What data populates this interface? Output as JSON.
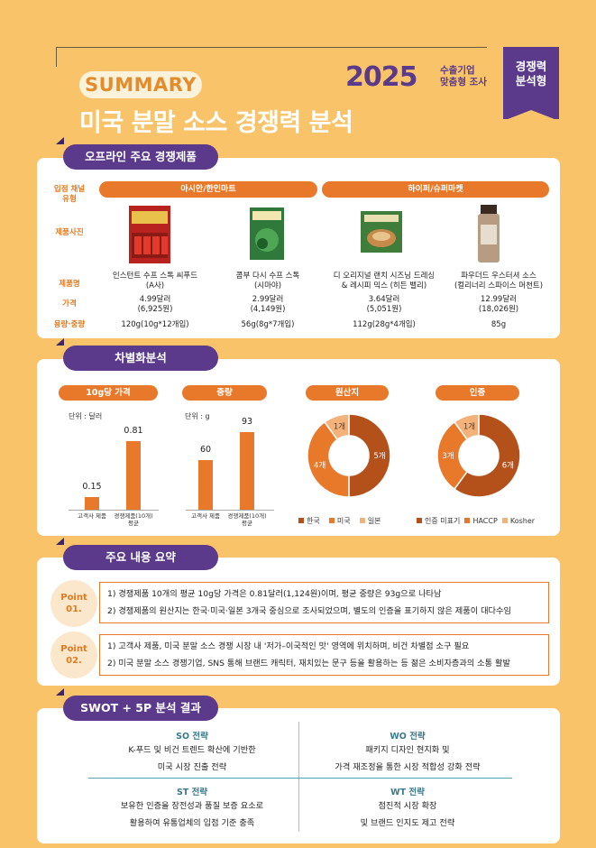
{
  "header": {
    "summary_label": "SUMMARY",
    "title": "미국 분말 소스 경쟁력 분석",
    "year": "2025",
    "year_sub_line1": "수출기업",
    "year_sub_line2": "맞춤형 조사",
    "badge_line1": "경쟁력",
    "badge_line2": "분석형"
  },
  "colors": {
    "purple": "#5B3A8C",
    "orange": "#E8782A",
    "background": "#F9C469",
    "brown": "#B4501A",
    "light_orange": "#F2B27A"
  },
  "offline": {
    "tab": "오프라인 주요 경쟁제품",
    "row_labels": {
      "channel": "입점 채널\n유형",
      "photo": "제품사진",
      "name": "제품명",
      "price": "가격",
      "weight": "용량·중량"
    },
    "channels": [
      "아시안/한인마트",
      "하이퍼/슈퍼마켓"
    ],
    "products": [
      {
        "name1": "인스턴트 수프 스톡 씨푸드",
        "name2": "(A사)",
        "price1": "4.99달러",
        "price2": "(6,925원)",
        "weight": "120g(10g*12개입)",
        "image": "red-seafood-stock-pack"
      },
      {
        "name1": "콤부 다시 수프 스톡",
        "name2": "(시마야)",
        "price1": "2.99달러",
        "price2": "(4,149원)",
        "weight": "56g(8g*7개입)",
        "image": "green-kombu-dashi-pack"
      },
      {
        "name1": "디 오리지널 랜치 시즈닝 드레싱",
        "name2": "& 레시피 믹스 (히든 밸리)",
        "price1": "3.64달러",
        "price2": "(5,051원)",
        "weight": "112g(28g*4개입)",
        "image": "green-ranch-mix-pouch"
      },
      {
        "name1": "파우더드 우스터셔 소스",
        "name2": "(컬리너리 스파이스 머천트)",
        "price1": "12.99달러",
        "price2": "(18,026원)",
        "weight": "85g",
        "image": "spice-jar"
      }
    ]
  },
  "diff": {
    "tab": "차별화분석",
    "price_head": "10g당 가격",
    "price_unit": "단위 : 달러",
    "weight_head": "중량",
    "weight_unit": "단위 : g",
    "origin_head": "원산지",
    "cert_head": "인증",
    "origin_legend": [
      "한국",
      "미국",
      "일본"
    ],
    "cert_legend": [
      "인증 미표기",
      "HACCP",
      "Kosher"
    ]
  },
  "chart_data": [
    {
      "type": "bar",
      "title": "10g당 가격",
      "unit": "단위 : 달러",
      "categories": [
        "고객사 제품",
        "경쟁제품(10개) 평균"
      ],
      "values": [
        0.15,
        0.81
      ]
    },
    {
      "type": "bar",
      "title": "중량",
      "unit": "단위 : g",
      "categories": [
        "고객사 제품",
        "경쟁제품(10개) 평균"
      ],
      "values": [
        60,
        93
      ]
    },
    {
      "type": "pie",
      "title": "원산지",
      "labels": [
        "한국",
        "미국",
        "일본"
      ],
      "values": [
        5,
        4,
        1
      ],
      "value_labels": [
        "5개",
        "4개",
        "1개"
      ]
    },
    {
      "type": "pie",
      "title": "인증",
      "labels": [
        "인증 미표기",
        "HACCP",
        "Kosher"
      ],
      "values": [
        6,
        3,
        1
      ],
      "value_labels": [
        "6개",
        "3개",
        "1개"
      ]
    }
  ],
  "summary": {
    "tab": "주요 내용 요약",
    "points": [
      {
        "label1": "Point",
        "label2": "01.",
        "lines": [
          "1) 경쟁제품 10개의 평균 10g당 가격은 0.81달러(1,124원)이며, 평균 중량은 93g으로 나타남",
          "2) 경쟁제품의 원산지는 한국·미국·일본 3개국 중심으로 조사되었으며, 별도의 인증을 표기하지 않은 제품이 대다수임"
        ]
      },
      {
        "label1": "Point",
        "label2": "02.",
        "lines": [
          "1) 고객사 제품, 미국 분말 소스 경쟁 시장 내 '저가–이국적인 맛' 영역에 위치하며, 비건 차별점 소구 필요",
          "2) 미국 분말 소스 경쟁기업, SNS 통해 브랜드 캐릭터, 재치있는 문구 등을 활용하는 등 젊은 소비자층과의 소통 활발"
        ]
      }
    ]
  },
  "swot": {
    "tab": "SWOT + 5P 분석 결과",
    "so_h": "SO 전략",
    "so_1": "K-푸드 및 비건 트렌드 확산에 기반한",
    "so_2": "미국 시장 진출 전략",
    "wo_h": "WO 전략",
    "wo_1": "패키지 디자인 현지화 및",
    "wo_2": "가격 재조정을 통한 시장 적합성 강화 전략",
    "st_h": "ST 전략",
    "st_1": "보유한 인증을 장전성과 품질 보증 요소로",
    "st_2": "활용하여 유통업체의 입점 기준 충족",
    "wt_h": "WT 전략",
    "wt_1": "점진적 시장 확장",
    "wt_2": "및 브랜드 인지도 제고 전략"
  }
}
